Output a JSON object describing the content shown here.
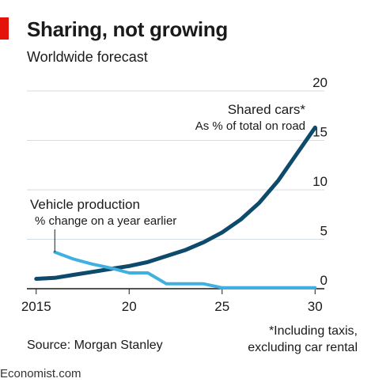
{
  "title": "Sharing, not growing",
  "subtitle": "Worldwide forecast",
  "source": "Source: Morgan Stanley",
  "footnote_line1": "*Including taxis,",
  "footnote_line2": "excluding car rental",
  "brand": "Economist.com",
  "chart_data": {
    "type": "line",
    "xlim": [
      2014.5,
      2030.5
    ],
    "ylim": [
      0,
      20
    ],
    "x_ticks": [
      2015,
      2020,
      2025,
      2030
    ],
    "x_tick_labels": [
      "2015",
      "20",
      "25",
      "30"
    ],
    "y_ticks": [
      0,
      5,
      10,
      15,
      20
    ],
    "y_tick_labels": [
      "0",
      "5",
      "10",
      "15",
      "20"
    ],
    "y_axis_side": "right",
    "grid": "horizontal",
    "series": [
      {
        "name": "Shared cars*",
        "sublabel": "As % of total on road",
        "color": "#0d4a6b",
        "x": [
          2015,
          2016,
          2017,
          2018,
          2019,
          2020,
          2021,
          2022,
          2023,
          2024,
          2025,
          2026,
          2027,
          2028,
          2029,
          2030
        ],
        "values": [
          1.0,
          1.1,
          1.4,
          1.7,
          2.0,
          2.3,
          2.7,
          3.3,
          3.9,
          4.7,
          5.7,
          7.0,
          8.7,
          10.9,
          13.6,
          16.3
        ]
      },
      {
        "name": "Vehicle production",
        "sublabel": "% change on a year earlier",
        "color": "#3fb0e0",
        "x": [
          2016,
          2017,
          2018,
          2019,
          2020,
          2021,
          2022,
          2023,
          2024,
          2025,
          2026,
          2027,
          2028,
          2029,
          2030
        ],
        "values": [
          3.7,
          3.0,
          2.5,
          2.1,
          1.6,
          1.6,
          0.5,
          0.5,
          0.5,
          0.1,
          0.1,
          0.1,
          0.1,
          0.1,
          0.1
        ]
      }
    ],
    "colors": {
      "axis": "#1a1a1a",
      "grid": "#d4dde3",
      "accent": "#e3120b"
    }
  }
}
